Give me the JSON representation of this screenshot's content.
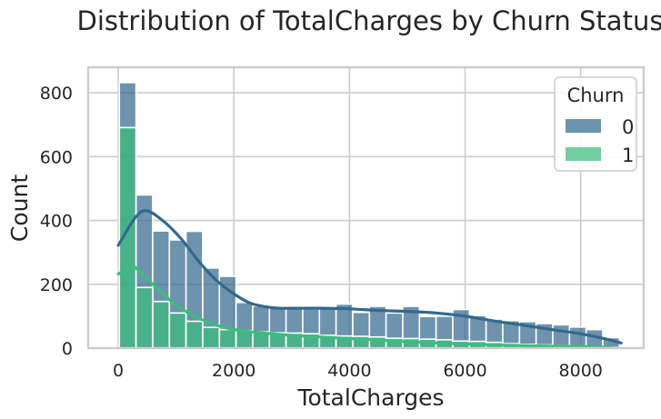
{
  "chart_data": {
    "type": "histogram",
    "title": "Distribution of TotalCharges by Churn Status",
    "xlabel": "TotalCharges",
    "ylabel": "Count",
    "xlim": [
      -520,
      9090
    ],
    "ylim": [
      0,
      880
    ],
    "xticks": [
      0,
      2000,
      4000,
      6000,
      8000
    ],
    "yticks": [
      0,
      200,
      400,
      600,
      800
    ],
    "grid": true,
    "bins": {
      "start": 18.8,
      "width": 288.4,
      "count": 30
    },
    "legend": {
      "title": "Churn",
      "placement": "top-right"
    },
    "series": [
      {
        "name": "0",
        "color": "#34698e",
        "opacity": 0.72,
        "counts": [
          832,
          480,
          367,
          339,
          366,
          251,
          225,
          143,
          132,
          129,
          130,
          130,
          125,
          138,
          112,
          131,
          110,
          131,
          99,
          100,
          121,
          102,
          91,
          86,
          83,
          77,
          73,
          66,
          58,
          33
        ],
        "kde": [
          [
            0,
            322
          ],
          [
            300,
            410
          ],
          [
            500,
            430
          ],
          [
            800,
            395
          ],
          [
            1100,
            340
          ],
          [
            1400,
            270
          ],
          [
            1700,
            212
          ],
          [
            2000,
            170
          ],
          [
            2300,
            140
          ],
          [
            2700,
            126
          ],
          [
            3000,
            125
          ],
          [
            3500,
            125
          ],
          [
            4000,
            123
          ],
          [
            4500,
            118
          ],
          [
            5000,
            115
          ],
          [
            5500,
            110
          ],
          [
            6000,
            100
          ],
          [
            6500,
            85
          ],
          [
            7000,
            72
          ],
          [
            7500,
            58
          ],
          [
            8000,
            45
          ],
          [
            8400,
            30
          ],
          [
            8700,
            16
          ]
        ]
      },
      {
        "name": "1",
        "color": "#3bbd7d",
        "opacity": 0.72,
        "counts": [
          691,
          190,
          146,
          110,
          84,
          65,
          58,
          55,
          51,
          48,
          47,
          45,
          40,
          38,
          37,
          35,
          31,
          30,
          28,
          26,
          22,
          21,
          18,
          14,
          12,
          10,
          8,
          5,
          3,
          2
        ],
        "kde": [
          [
            0,
            232
          ],
          [
            200,
            252
          ],
          [
            300,
            252
          ],
          [
            600,
            200
          ],
          [
            1000,
            135
          ],
          [
            1400,
            93
          ],
          [
            1800,
            66
          ],
          [
            2200,
            53
          ],
          [
            2600,
            46
          ],
          [
            3000,
            40
          ],
          [
            3500,
            35
          ],
          [
            4000,
            30
          ],
          [
            4500,
            25
          ],
          [
            5000,
            20
          ],
          [
            5500,
            16
          ],
          [
            6000,
            13
          ],
          [
            6500,
            10
          ],
          [
            7000,
            8
          ],
          [
            7500,
            6
          ],
          [
            8000,
            5
          ],
          [
            8500,
            3
          ]
        ]
      }
    ]
  }
}
